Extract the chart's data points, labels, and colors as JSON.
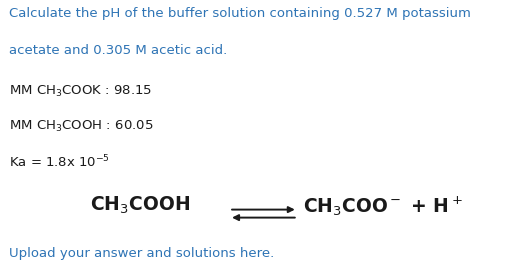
{
  "bg_color": "#ffffff",
  "title_line1": "Calculate the pH of the buffer solution containing 0.527 M potassium",
  "title_line2": "acetate and 0.305 M acetic acid.",
  "title_color": "#2e74b5",
  "line1_pre": "MM CH",
  "line1_sub": "3",
  "line1_post": "COOK : 98.15",
  "line2_pre": "MM CH",
  "line2_sub": "3",
  "line2_post": "COOH : 60.05",
  "line3_main": "Ka = 1.8x 10",
  "line3_sup": "-5",
  "footer": "Upload your answer and solutions here.",
  "footer_color": "#2e74b5",
  "eq_left_pre": "CH",
  "eq_left_sub": "3",
  "eq_left_post": "COOH",
  "eq_right_pre": "CH",
  "eq_right_sub": "3",
  "eq_right_mid": "COO",
  "eq_right_sup1": "−",
  "eq_right_plus": " + H",
  "eq_right_sup2": "+",
  "body_color": "#1a1a1a",
  "font_size_title": 9.5,
  "font_size_body": 9.5,
  "font_size_eq": 13.5,
  "font_size_footer": 9.5
}
